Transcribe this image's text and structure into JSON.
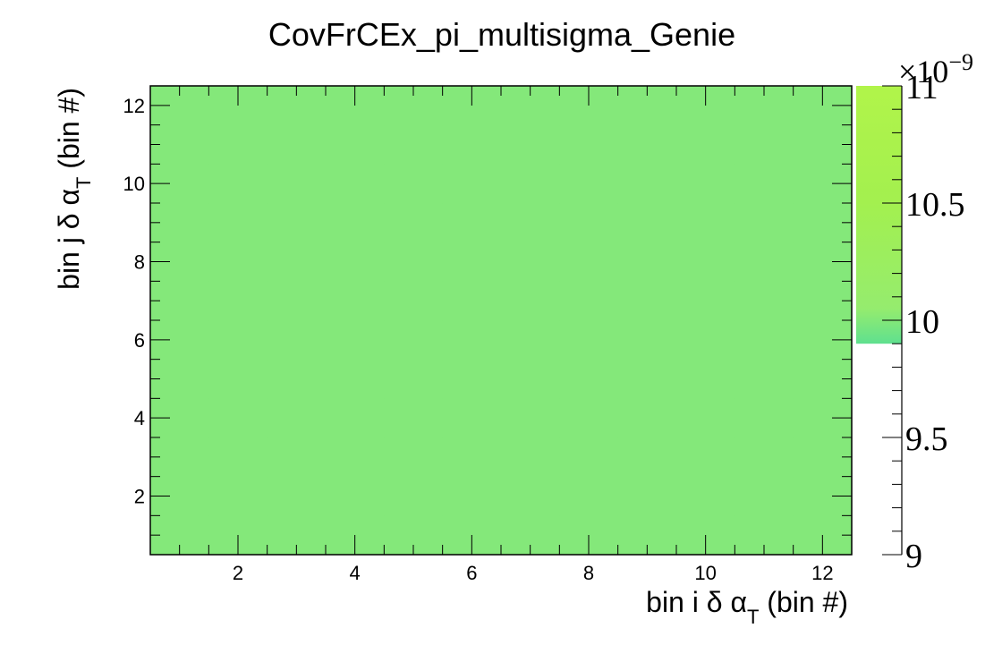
{
  "chart_data": {
    "type": "heatmap",
    "title": "CovFrCEx_pi_multisigma_Genie",
    "xlabel": {
      "prefix": "bin i δ α",
      "sub": "T",
      "suffix": " (bin #)"
    },
    "ylabel": {
      "prefix": "bin j δ α",
      "sub": "T",
      "suffix": " (bin #)"
    },
    "xlim": [
      0.5,
      12.5
    ],
    "ylim": [
      0.5,
      12.5
    ],
    "x_ticks": [
      "2",
      "4",
      "6",
      "8",
      "10",
      "12"
    ],
    "y_ticks": [
      "2",
      "4",
      "6",
      "8",
      "10",
      "12"
    ],
    "n_bins_x": 12,
    "n_bins_y": 12,
    "cell_value": 9.9e-09,
    "cell_color": "#84e87a",
    "colorbar": {
      "range": [
        9,
        11
      ],
      "ticks": [
        "9",
        "9.5",
        "10",
        "10.5",
        "11"
      ],
      "exponent_label": {
        "base": "×10",
        "sup": "−9"
      },
      "filled_from": 9.9,
      "filled_to": 11,
      "gradient": [
        {
          "value": 9.9,
          "color": "#5fe08f"
        },
        {
          "value": 10.05,
          "color": "#95ec6e"
        },
        {
          "value": 10.5,
          "color": "#a3f04f"
        },
        {
          "value": 11.0,
          "color": "#b1f44a"
        }
      ]
    }
  }
}
